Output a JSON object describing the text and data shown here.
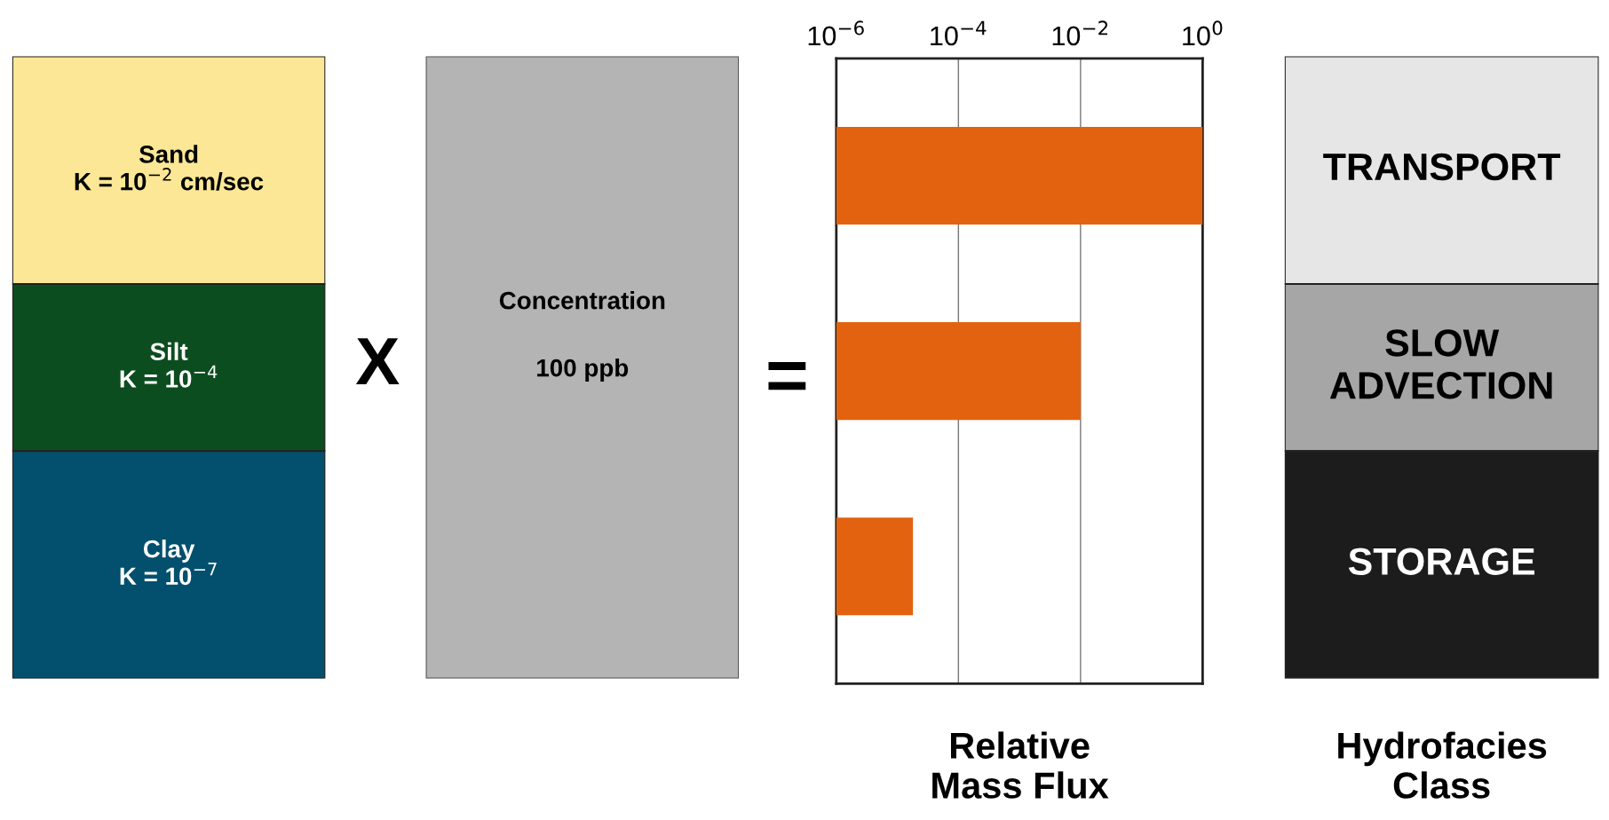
{
  "chart_data": [
    {
      "type": "other",
      "annotations": [
        "Sand\nK = 10$^{−2}$ cm/sec",
        "Silt\nK = 10$^{−4}$",
        "Clay\nK = 10$^{−7}$"
      ],
      "colors": [
        "#fbe795",
        "#0c4d1f",
        "#02506e"
      ]
    },
    {
      "type": "other",
      "annotations": [
        "X",
        "Concentration\n\n100 ppb",
        "="
      ],
      "colors": [
        "#b4b4b4"
      ]
    },
    {
      "type": "bar",
      "orientation": "horizontal",
      "log": "x",
      "categories": [
        null,
        null,
        null
      ],
      "values": [
        1,
        0.01,
        1.8e-05
      ],
      "color": "#e36210",
      "xlim": [
        1e-06,
        1
      ],
      "xticks": [
        {
          "value": 1e-06,
          "label": "10$^{−6}$"
        },
        {
          "value": 0.0001,
          "label": "10$^{−4}$"
        },
        {
          "value": 0.01,
          "label": "10$^{−2}$"
        },
        {
          "value": 1,
          "label": "10$^{0}$"
        }
      ],
      "grid": "x",
      "tick_labels": "x",
      "xlabel": "Relative\nMass Flux"
    },
    {
      "type": "other",
      "annotations": [
        "TRANSPORT",
        "SLOW\nADVECTION",
        "STORAGE"
      ],
      "colors": [
        "#e6e6e6",
        "#a6a6a6",
        "#1c1c1c"
      ],
      "xlabel": "Hydrofacies\nClass"
    }
  ]
}
